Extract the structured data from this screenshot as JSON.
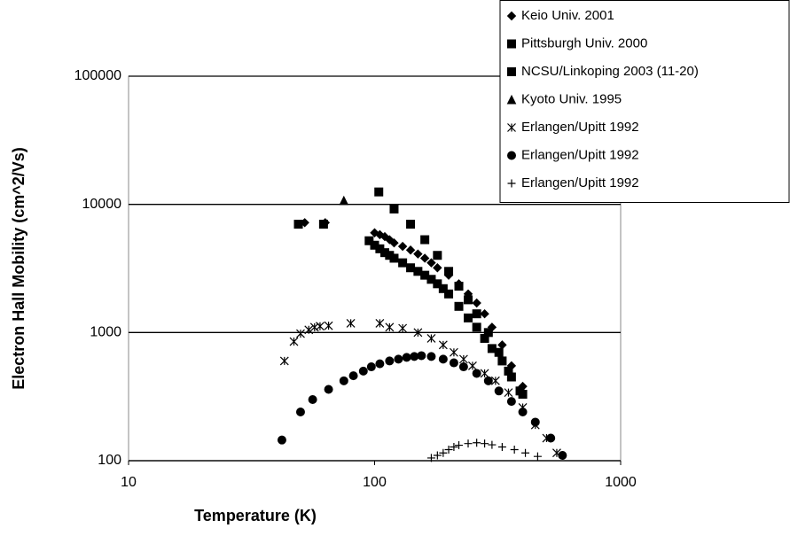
{
  "chart_data": {
    "type": "scatter",
    "x_label": "Temperature (K)",
    "y_label": "Electron Hall Mobility (cm^2/Vs)",
    "xscale": "log",
    "yscale": "log",
    "xlim": [
      10,
      1000
    ],
    "ylim": [
      100,
      100000
    ],
    "xticks": [
      10,
      100,
      1000
    ],
    "yticks": [
      100,
      1000,
      10000,
      100000
    ],
    "grid": true,
    "legend": "top-right",
    "series": [
      {
        "name": "Keio Univ. 2001",
        "color": "#000000",
        "marker": "diamond",
        "x": [
          52,
          63,
          100,
          105,
          110,
          115,
          120,
          130,
          140,
          150,
          160,
          170,
          180,
          200,
          220,
          240,
          260,
          280,
          300,
          330,
          360,
          400
        ],
        "values": [
          7200,
          7200,
          6000,
          5800,
          5600,
          5300,
          5000,
          4700,
          4400,
          4100,
          3800,
          3500,
          3200,
          2800,
          2400,
          2000,
          1700,
          1400,
          1100,
          800,
          550,
          380
        ]
      },
      {
        "name": "Pittsburgh Univ. 2000",
        "color": "#000000",
        "marker": "square",
        "x": [
          49,
          62,
          104,
          120,
          140,
          160,
          180,
          200,
          220,
          240,
          260,
          290,
          320,
          350,
          390
        ],
        "values": [
          7000,
          7000,
          12500,
          9200,
          7000,
          5300,
          4000,
          3000,
          2300,
          1800,
          1400,
          1000,
          700,
          500,
          350
        ]
      },
      {
        "name": "NCSU/Linkoping 2003 (11-20)",
        "color": "#000000",
        "marker": "square",
        "x": [
          95,
          100,
          105,
          110,
          115,
          120,
          130,
          140,
          150,
          160,
          170,
          180,
          190,
          200,
          220,
          240,
          260,
          280,
          300,
          330,
          360,
          400
        ],
        "values": [
          5200,
          4800,
          4500,
          4200,
          4000,
          3800,
          3500,
          3200,
          3000,
          2800,
          2600,
          2400,
          2200,
          2000,
          1600,
          1300,
          1100,
          900,
          750,
          600,
          450,
          330
        ]
      },
      {
        "name": "Kyoto Univ. 1995",
        "color": "#000000",
        "marker": "triangle",
        "x": [
          75
        ],
        "values": [
          10700
        ]
      },
      {
        "name": "Erlangen/Upitt 1992",
        "color": "#000000",
        "marker": "asterisk",
        "x": [
          43,
          47,
          50,
          54,
          57,
          60,
          65,
          80,
          105,
          115,
          130,
          150,
          170,
          190,
          210,
          230,
          250,
          280,
          310,
          350,
          400,
          450,
          500,
          550
        ],
        "values": [
          600,
          850,
          980,
          1050,
          1100,
          1120,
          1130,
          1180,
          1180,
          1100,
          1080,
          1000,
          900,
          800,
          700,
          620,
          550,
          480,
          420,
          340,
          260,
          190,
          150,
          115
        ]
      },
      {
        "name": "Erlangen/Upitt 1992",
        "color": "#000000",
        "marker": "circle",
        "x": [
          42,
          50,
          56,
          65,
          75,
          82,
          90,
          97,
          105,
          115,
          125,
          135,
          145,
          155,
          170,
          190,
          210,
          230,
          260,
          290,
          320,
          360,
          400,
          450,
          520,
          580
        ],
        "values": [
          145,
          240,
          300,
          360,
          420,
          460,
          500,
          540,
          570,
          600,
          620,
          640,
          650,
          660,
          650,
          620,
          580,
          540,
          480,
          420,
          350,
          290,
          240,
          200,
          150,
          110
        ]
      },
      {
        "name": "Erlangen/Upitt 1992",
        "color": "#000000",
        "marker": "plus",
        "x": [
          170,
          180,
          190,
          200,
          210,
          220,
          240,
          260,
          280,
          300,
          330,
          370,
          410,
          460
        ],
        "values": [
          105,
          110,
          115,
          122,
          128,
          132,
          136,
          138,
          136,
          133,
          128,
          122,
          115,
          108
        ]
      }
    ]
  }
}
